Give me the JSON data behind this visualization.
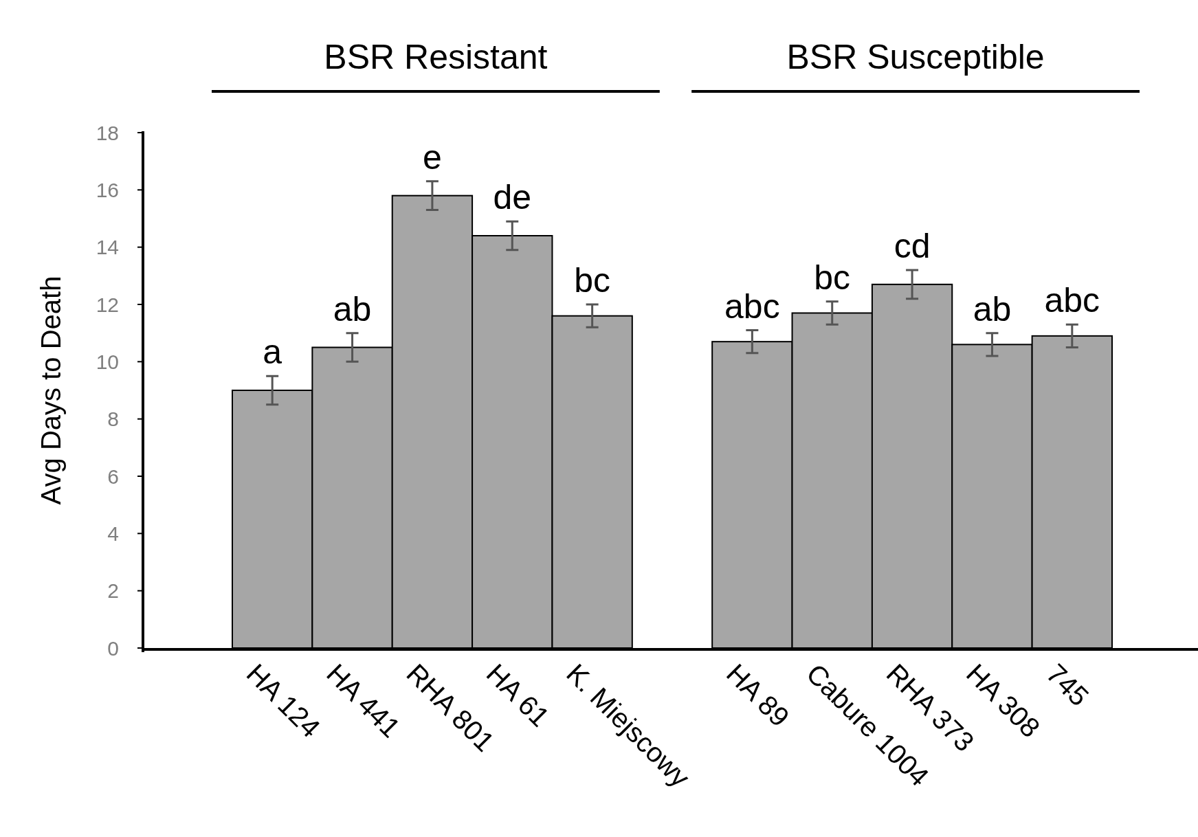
{
  "chart_data": {
    "type": "bar",
    "ylabel": "Avg Days to Death",
    "categories": [
      "HA 124",
      "HA 441",
      "RHA 801",
      "HA 61",
      "K. Miejscowy",
      null,
      "HA 89",
      "Cabure 1004",
      "RHA 373",
      "HA 308",
      "745"
    ],
    "values": [
      9.0,
      10.5,
      15.8,
      14.4,
      11.6,
      null,
      10.7,
      11.7,
      12.7,
      10.6,
      10.9
    ],
    "errors": [
      0.5,
      0.5,
      0.5,
      0.5,
      0.4,
      null,
      0.4,
      0.4,
      0.5,
      0.4,
      0.4
    ],
    "value_labels": [
      "a",
      "ab",
      "e",
      "de",
      "bc",
      null,
      "abc",
      "bc",
      "cd",
      "ab",
      "abc"
    ],
    "color": "#a6a6a6",
    "ylim": [
      0,
      18
    ],
    "yticks": [
      0,
      2,
      4,
      6,
      8,
      10,
      12,
      14,
      16,
      18
    ],
    "grid": false,
    "annotations": [
      "BSR Resistant",
      "BSR Susceptible"
    ]
  }
}
